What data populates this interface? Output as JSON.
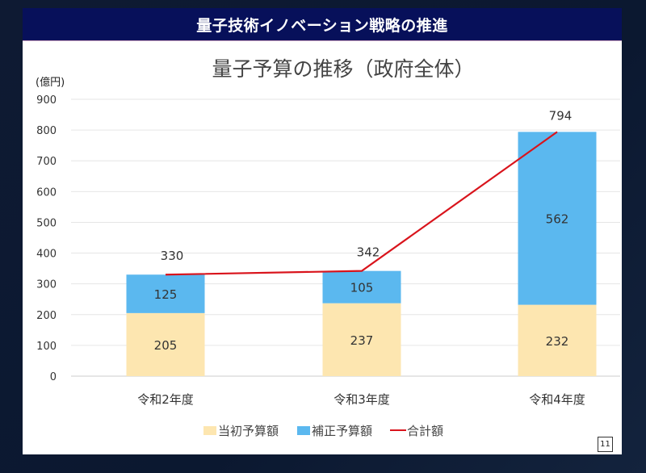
{
  "header": {
    "title": "量子技術イノベーション戦略の推進"
  },
  "page_number": "11",
  "chart_data": {
    "type": "bar",
    "stacked": true,
    "title": "量子予算の推移（政府全体）",
    "ylabel": "(億円)",
    "xlabel": "",
    "ylim": [
      0,
      900
    ],
    "yticks": [
      0,
      100,
      200,
      300,
      400,
      500,
      600,
      700,
      800,
      900
    ],
    "grid": true,
    "legend_position": "bottom",
    "categories": [
      "令和2年度",
      "令和3年度",
      "令和4年度"
    ],
    "series": [
      {
        "name": "当初予算額",
        "type": "bar",
        "values": [
          205,
          237,
          232
        ],
        "color": "#fde6b0"
      },
      {
        "name": "補正予算額",
        "type": "bar",
        "values": [
          125,
          105,
          562
        ],
        "color": "#5bb8ef"
      },
      {
        "name": "合計額",
        "type": "line",
        "values": [
          330,
          342,
          794
        ],
        "color": "#d9141c"
      }
    ]
  }
}
